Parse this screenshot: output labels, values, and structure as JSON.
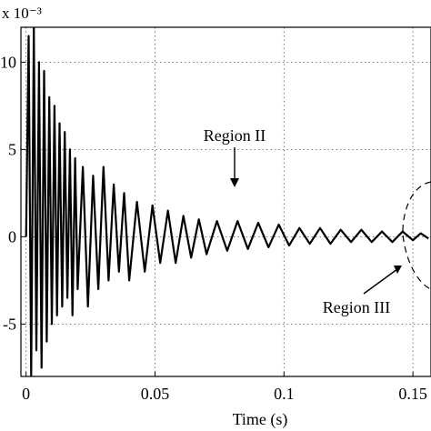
{
  "chart_data": {
    "type": "line",
    "title": "",
    "xlabel": "Time (s)",
    "ylabel": "",
    "y_multiplier": "x 10⁻³",
    "xlim": [
      -0.002,
      0.157
    ],
    "ylim": [
      -8,
      12
    ],
    "grid": true,
    "x_ticks": [
      0,
      0.05,
      0.1,
      0.15
    ],
    "x_tick_labels": [
      "0",
      "0.05",
      "0.1",
      "0.15"
    ],
    "y_ticks": [
      10,
      5,
      0,
      -5
    ],
    "y_tick_labels": [
      "10",
      "5",
      "0",
      "-5"
    ],
    "series": [
      {
        "x": [
          0.0,
          0.001,
          0.002,
          0.003,
          0.004,
          0.005,
          0.006,
          0.007,
          0.008,
          0.009,
          0.01,
          0.011,
          0.012,
          0.013,
          0.014,
          0.015,
          0.016,
          0.017,
          0.018,
          0.019,
          0.02,
          0.022,
          0.024,
          0.026,
          0.028,
          0.03,
          0.032,
          0.034,
          0.036,
          0.038,
          0.04,
          0.043,
          0.046,
          0.049,
          0.052,
          0.055,
          0.058,
          0.061,
          0.064,
          0.067,
          0.07,
          0.074,
          0.078,
          0.082,
          0.086,
          0.09,
          0.094,
          0.098,
          0.102,
          0.106,
          0.11,
          0.114,
          0.118,
          0.122,
          0.126,
          0.13,
          0.134,
          0.138,
          0.142,
          0.146,
          0.15,
          0.153,
          0.156
        ],
        "values": [
          0.0,
          11.5,
          -8.0,
          12.0,
          -6.5,
          10.0,
          -7.5,
          9.5,
          -6.0,
          8.0,
          -5.0,
          7.5,
          -4.5,
          6.5,
          -4.0,
          6.0,
          -3.5,
          5.0,
          -4.5,
          4.5,
          -3.0,
          4.0,
          -4.0,
          3.5,
          -3.0,
          4.0,
          -2.5,
          3.0,
          -2.0,
          2.5,
          -2.5,
          2.0,
          -2.0,
          1.8,
          -1.5,
          1.5,
          -1.5,
          1.2,
          -1.2,
          1.0,
          -1.0,
          0.9,
          -0.8,
          0.9,
          -0.7,
          0.8,
          -0.6,
          0.7,
          -0.5,
          0.5,
          -0.4,
          0.5,
          -0.4,
          0.4,
          -0.3,
          0.4,
          -0.3,
          0.3,
          -0.3,
          0.3,
          -0.2,
          0.2,
          -0.1
        ]
      }
    ],
    "annotations": [
      {
        "text": "Region II",
        "x": 0.082,
        "y": 2.1
      },
      {
        "text": "Region III",
        "x": 0.148,
        "y": -1.3
      }
    ]
  }
}
